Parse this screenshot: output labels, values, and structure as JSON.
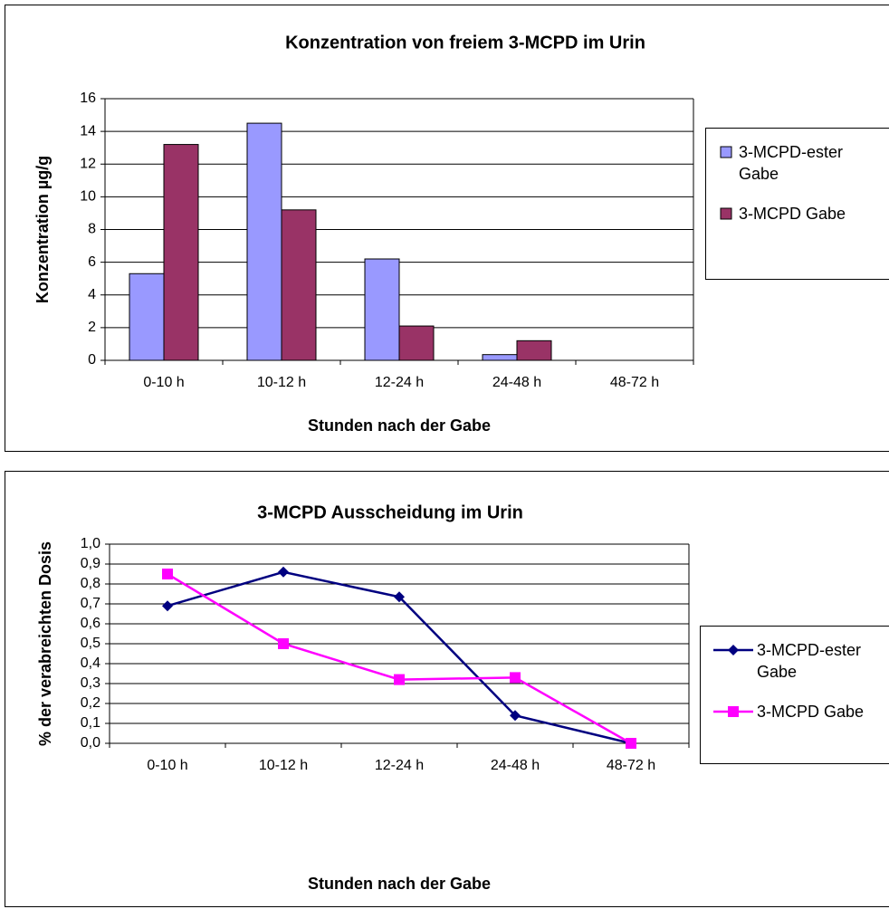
{
  "chart_data": [
    {
      "type": "bar",
      "title": "Konzentration von freiem 3-MCPD im Urin",
      "x_label": "Stunden nach der Gabe",
      "y_label": "Konzentration µg/g",
      "categories": [
        "0-10 h",
        "10-12 h",
        "12-24 h",
        "24-48 h",
        "48-72 h"
      ],
      "series": [
        {
          "name": "3-MCPD-ester Gabe",
          "color": "#9999ff",
          "values": [
            5.3,
            14.5,
            6.2,
            0.35,
            0
          ]
        },
        {
          "name": "3-MCPD Gabe",
          "color": "#993366",
          "values": [
            13.2,
            9.2,
            2.1,
            1.2,
            0
          ]
        }
      ],
      "ylim": [
        0,
        16
      ],
      "yticks": [
        0,
        2,
        4,
        6,
        8,
        10,
        12,
        14,
        16
      ],
      "grid": true,
      "legend": "right"
    },
    {
      "type": "line",
      "title": "3-MCPD Ausscheidung im Urin",
      "x_label": "Stunden nach der Gabe",
      "y_label": "% der verabreichten Dosis",
      "categories": [
        "0-10 h",
        "10-12 h",
        "12-24 h",
        "24-48 h",
        "48-72 h"
      ],
      "series": [
        {
          "name": "3-MCPD-ester Gabe",
          "color": "#000080",
          "marker": "diamond",
          "values": [
            0.69,
            0.86,
            0.735,
            0.14,
            0.0
          ]
        },
        {
          "name": "3-MCPD Gabe",
          "color": "#ff00ff",
          "marker": "square",
          "values": [
            0.85,
            0.5,
            0.32,
            0.33,
            0.0
          ]
        }
      ],
      "ylim": [
        0,
        1
      ],
      "yticks": [
        {
          "value": 0,
          "label": "0,0"
        },
        {
          "value": 0.1,
          "label": "0,1"
        },
        {
          "value": 0.2,
          "label": "0,2"
        },
        {
          "value": 0.3,
          "label": "0,3"
        },
        {
          "value": 0.4,
          "label": "0,4"
        },
        {
          "value": 0.5,
          "label": "0,5"
        },
        {
          "value": 0.6,
          "label": "0,6"
        },
        {
          "value": 0.7,
          "label": "0,7"
        },
        {
          "value": 0.8,
          "label": "0,8"
        },
        {
          "value": 0.9,
          "label": "0,9"
        },
        {
          "value": 1,
          "label": "1,0"
        }
      ],
      "grid": true,
      "legend": "right"
    }
  ]
}
